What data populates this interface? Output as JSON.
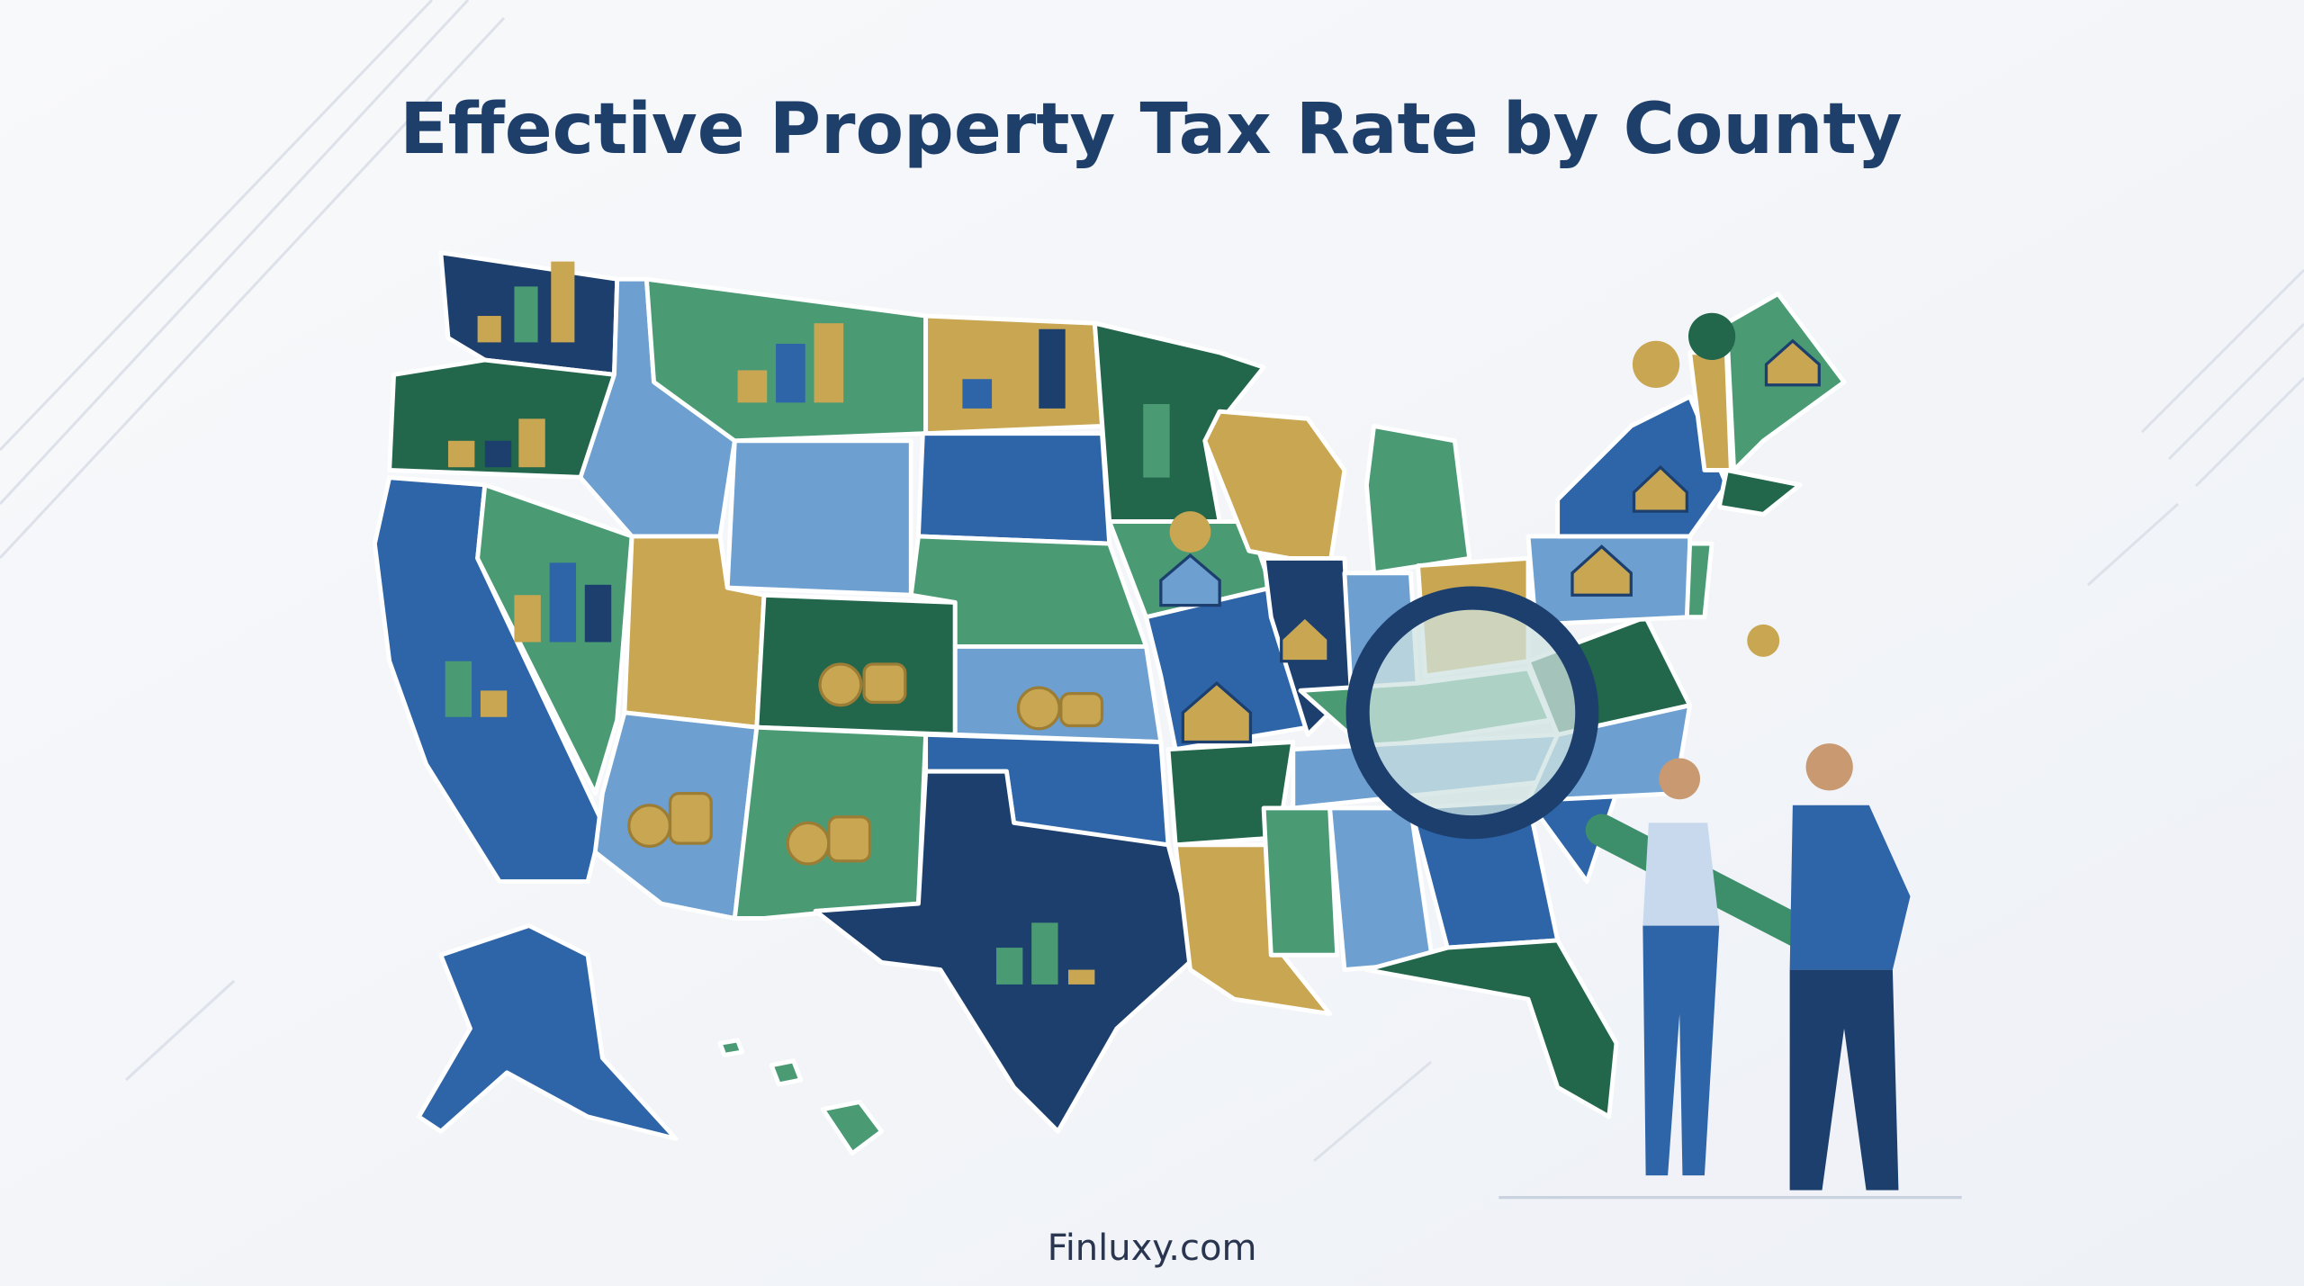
{
  "header": {
    "title": "Effective Property Tax Rate by County"
  },
  "footer": {
    "source": "Finluxy.com"
  }
}
